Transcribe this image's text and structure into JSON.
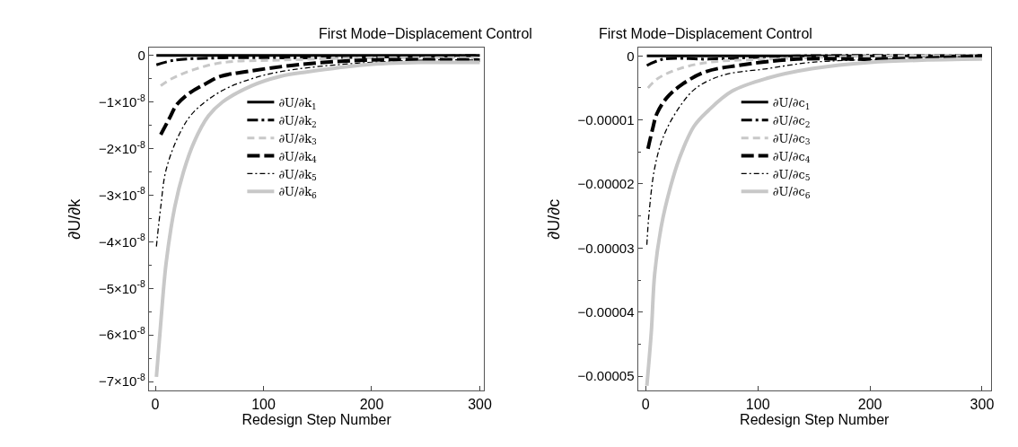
{
  "chart_data": [
    {
      "type": "line",
      "title": "First Mode−Displacement Control",
      "xlabel": "Redesign Step Number",
      "ylabel": "∂U/∂k",
      "xlim": [
        -6,
        304
      ],
      "xticks": [
        0,
        100,
        200,
        300
      ],
      "ylim": [
        -7.2e-08,
        1.7e-09
      ],
      "yticks": [
        {
          "value": 0,
          "label": "0"
        },
        {
          "value": -1e-08,
          "label": "−1×10$^{-8}$"
        },
        {
          "value": -2e-08,
          "label": "−2×10$^{-8}$"
        },
        {
          "value": -3e-08,
          "label": "−3×10$^{-8}$"
        },
        {
          "value": -4e-08,
          "label": "−4×10$^{-8}$"
        },
        {
          "value": -5e-08,
          "label": "−5×10$^{-8}$"
        },
        {
          "value": -6e-08,
          "label": "−6×10$^{-8}$"
        },
        {
          "value": -7e-08,
          "label": "−7×10$^{-8}$"
        }
      ],
      "legend": "center",
      "marker": "none",
      "series": [
        {
          "name": "∂U/∂k$_{1}$",
          "color": "#000000",
          "line_style": "solid",
          "x": [
            1,
            50,
            150,
            300
          ],
          "values": [
            0,
            0,
            0,
            0
          ]
        },
        {
          "name": "∂U/∂k$_{2}$",
          "color": "#000000",
          "line_style": "dashed",
          "x": [
            1,
            18,
            62,
            141,
            300
          ],
          "values": [
            -2e-09,
            -1e-09,
            -5e-10,
            -5e-10,
            0
          ]
        },
        {
          "name": "∂U/∂k$_{3}$",
          "color": "#c8c8c8",
          "line_style": "dashed",
          "x": [
            5,
            15,
            36,
            62,
            115,
            194,
            300
          ],
          "values": [
            -6.5e-09,
            -5e-09,
            -3e-09,
            -1.5e-09,
            -1e-09,
            -5e-10,
            -5e-10
          ]
        },
        {
          "name": "∂U/∂k$_{4}$",
          "color": "#000000",
          "line_style": "dashed",
          "x": [
            5,
            13,
            20,
            32,
            47,
            60,
            83,
            131,
            194,
            300
          ],
          "values": [
            -1.7e-08,
            -1.35e-08,
            -1.05e-08,
            -8e-09,
            -6e-09,
            -4.5e-09,
            -3.5e-09,
            -2e-09,
            -1e-09,
            -1e-09
          ]
        },
        {
          "name": "∂U/∂k$_{5}$",
          "color": "#000000",
          "line_style": "dashed",
          "x": [
            1,
            5,
            10,
            23,
            36,
            62,
            89,
            115,
            167,
            246,
            300
          ],
          "values": [
            -4.1e-08,
            -3.25e-08,
            -2.45e-08,
            -1.65e-08,
            -1.2e-08,
            -7.5e-09,
            -5e-09,
            -3.5e-09,
            -2e-09,
            -1e-09,
            -1e-09
          ]
        },
        {
          "name": "∂U/∂k$_{6}$",
          "color": "#c8c8c8",
          "line_style": "solid",
          "x": [
            1,
            5,
            10,
            18,
            26,
            36,
            49,
            62,
            89,
            115,
            141,
            194,
            246,
            300
          ],
          "values": [
            -6.9e-08,
            -5.75e-08,
            -4.45e-08,
            -3.25e-08,
            -2.5e-08,
            -1.85e-08,
            -1.3e-08,
            -1e-08,
            -6.5e-09,
            -4.5e-09,
            -3.5e-09,
            -2e-09,
            -1.5e-09,
            -1.5e-09
          ]
        }
      ]
    },
    {
      "type": "line",
      "title": "First Mode−Displacement Control",
      "xlabel": "Redesign Step Number",
      "ylabel": "∂U/∂c",
      "xlim": [
        -7,
        308
      ],
      "xticks": [
        0,
        100,
        200,
        300
      ],
      "ylim": [
        -5.23e-05,
        1.3e-06
      ],
      "yticks": [
        {
          "value": 0,
          "label": "0"
        },
        {
          "value": -1e-05,
          "label": "−0.00001"
        },
        {
          "value": -2e-05,
          "label": "−0.00002"
        },
        {
          "value": -3e-05,
          "label": "−0.00003"
        },
        {
          "value": -4e-05,
          "label": "−0.00004"
        },
        {
          "value": -5e-05,
          "label": "−0.00005"
        }
      ],
      "legend": "center",
      "marker": "none",
      "series": [
        {
          "name": "∂U/∂c$_{1}$",
          "color": "#000000",
          "line_style": "solid",
          "x": [
            1,
            50,
            150,
            300
          ],
          "values": [
            0,
            0,
            0,
            0
          ]
        },
        {
          "name": "∂U/∂c$_{2}$",
          "color": "#000000",
          "line_style": "dashed",
          "x": [
            1,
            16,
            56,
            135,
            300
          ],
          "values": [
            -1.5e-06,
            -5e-07,
            -5e-07,
            0,
            0
          ]
        },
        {
          "name": "∂U/∂c$_{3}$",
          "color": "#c8c8c8",
          "line_style": "dashed",
          "x": [
            2,
            11,
            30,
            56,
            108,
            214,
            300
          ],
          "values": [
            -5e-06,
            -3.5e-06,
            -2e-06,
            -1e-06,
            -5e-07,
            0,
            0
          ]
        },
        {
          "name": "∂U/∂c$_{4}$",
          "color": "#000000",
          "line_style": "dashed",
          "x": [
            2,
            6,
            10,
            19,
            32,
            53,
            82,
            135,
            214,
            300
          ],
          "values": [
            -1.45e-05,
            -1.15e-05,
            -9e-06,
            -6.5e-06,
            -4.5e-06,
            -2.5e-06,
            -1.5e-06,
            -5e-07,
            -5e-07,
            0
          ]
        },
        {
          "name": "∂U/∂c$_{5}$",
          "color": "#000000",
          "line_style": "dashed",
          "x": [
            1,
            3,
            8,
            16,
            30,
            45,
            69,
            108,
            148,
            214,
            300
          ],
          "values": [
            -2.95e-05,
            -2.45e-05,
            -1.75e-05,
            -1.25e-05,
            -8e-06,
            -5e-06,
            -3e-06,
            -2e-06,
            -1e-06,
            -5e-07,
            0
          ]
        },
        {
          "name": "∂U/∂c$_{6}$",
          "color": "#c8c8c8",
          "line_style": "solid",
          "x": [
            1,
            5,
            8,
            14,
            22,
            30,
            43,
            56,
            77,
            108,
            148,
            200,
            300
          ],
          "values": [
            -5.15e-05,
            -4.3e-05,
            -3.4e-05,
            -2.65e-05,
            -2.05e-05,
            -1.6e-05,
            -1.1e-05,
            -8.5e-06,
            -5.5e-06,
            -3.5e-06,
            -2e-06,
            -1e-06,
            -5e-07
          ]
        }
      ]
    }
  ]
}
